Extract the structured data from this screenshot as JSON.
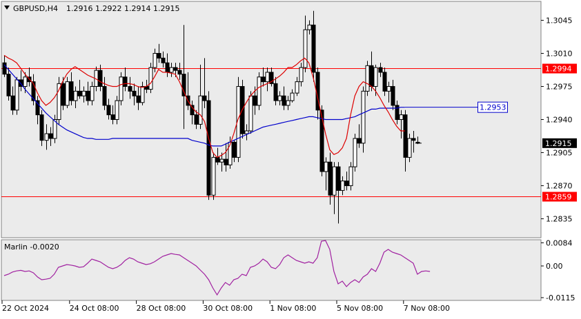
{
  "header": {
    "symbol_label": "GBPUSD,H4",
    "ohlc_label": "1.2916 1.2922 1.2914 1.2915"
  },
  "colors": {
    "panel_bg": "#ebebeb",
    "candle": "#000000",
    "candle_bull_body": "#ffffff",
    "ma_fast": "#dd0000",
    "ma_slow": "#0000cc",
    "hline": "#ff0000",
    "marlin": "#a020a0",
    "blue_label": "#0000cc"
  },
  "chart_data": [
    {
      "type": "candlestick",
      "title": "GBPUSD,H4",
      "ylim": [
        1.2815,
        1.3065
      ],
      "grid": false,
      "price_ticks": [
        "1.3045",
        "1.3010",
        "1.2975",
        "1.2940",
        "1.2905",
        "1.2870",
        "1.2835"
      ],
      "time_labels": [
        "22 Oct 2024",
        "24 Oct 08:00",
        "28 Oct 08:00",
        "30 Oct 08:00",
        "1 Nov 08:00",
        "5 Nov 08:00",
        "7 Nov 08:00"
      ],
      "time_label_index": [
        0,
        16,
        32,
        48,
        64,
        80,
        96
      ],
      "current_price": 1.2915,
      "current_price_label": "1.2915",
      "horizontal_lines": [
        {
          "value": 1.2994,
          "label": "1.2994"
        },
        {
          "value": 1.2859,
          "label": "1.2859"
        }
      ],
      "blue_level": {
        "value": 1.2953,
        "label": "1.2953"
      },
      "candles": [
        [
          1.3,
          1.3008,
          1.2985,
          1.2988
        ],
        [
          1.2988,
          1.2995,
          1.296,
          1.2965
        ],
        [
          1.2965,
          1.2975,
          1.2945,
          1.295
        ],
        [
          1.295,
          1.2985,
          1.2945,
          1.2982
        ],
        [
          1.2982,
          1.2992,
          1.297,
          1.2975
        ],
        [
          1.2975,
          1.299,
          1.2968,
          1.2985
        ],
        [
          1.2985,
          1.2995,
          1.2975,
          1.298
        ],
        [
          1.298,
          1.2988,
          1.2955,
          1.296
        ],
        [
          1.296,
          1.2965,
          1.2935,
          1.2945
        ],
        [
          1.2945,
          1.295,
          1.2912,
          1.2918
        ],
        [
          1.2918,
          1.2935,
          1.2908,
          1.2925
        ],
        [
          1.2925,
          1.2932,
          1.2912,
          1.292
        ],
        [
          1.292,
          1.2945,
          1.2915,
          1.294
        ],
        [
          1.294,
          1.2985,
          1.2935,
          1.2978
        ],
        [
          1.2978,
          1.2985,
          1.295,
          1.2955
        ],
        [
          1.2955,
          1.2985,
          1.2952,
          1.298
        ],
        [
          1.298,
          1.299,
          1.2955,
          1.296
        ],
        [
          1.296,
          1.2975,
          1.2952,
          1.297
        ],
        [
          1.297,
          1.2982,
          1.2962,
          1.2965
        ],
        [
          1.2965,
          1.2975,
          1.2958,
          1.297
        ],
        [
          1.297,
          1.298,
          1.2955,
          1.296
        ],
        [
          1.296,
          1.298,
          1.2955,
          1.2975
        ],
        [
          1.2975,
          1.2996,
          1.297,
          1.2992
        ],
        [
          1.2992,
          1.2998,
          1.297,
          1.2975
        ],
        [
          1.2975,
          1.2985,
          1.295,
          1.2955
        ],
        [
          1.2955,
          1.2962,
          1.294,
          1.2945
        ],
        [
          1.2945,
          1.2955,
          1.2935,
          1.294
        ],
        [
          1.294,
          1.2965,
          1.2935,
          1.296
        ],
        [
          1.296,
          1.299,
          1.2955,
          1.2985
        ],
        [
          1.2985,
          1.2995,
          1.297,
          1.2975
        ],
        [
          1.2975,
          1.2985,
          1.2962,
          1.297
        ],
        [
          1.297,
          1.2978,
          1.2955,
          1.2965
        ],
        [
          1.2965,
          1.2975,
          1.295,
          1.2958
        ],
        [
          1.2958,
          1.298,
          1.2955,
          1.2975
        ],
        [
          1.2975,
          1.2982,
          1.2968,
          1.2972
        ],
        [
          1.2972,
          1.3,
          1.2968,
          1.2995
        ],
        [
          1.2995,
          1.3015,
          1.299,
          1.301
        ],
        [
          1.301,
          1.302,
          1.3,
          1.3005
        ],
        [
          1.3005,
          1.3012,
          1.2995,
          1.3
        ],
        [
          1.3,
          1.301,
          1.2985,
          1.299
        ],
        [
          1.299,
          1.3,
          1.2985,
          1.2995
        ],
        [
          1.2995,
          1.3,
          1.2985,
          1.2992
        ],
        [
          1.2992,
          1.3,
          1.2982,
          1.2988
        ],
        [
          1.2988,
          1.304,
          1.293,
          1.2965
        ],
        [
          1.2965,
          1.299,
          1.295,
          1.2955
        ],
        [
          1.2955,
          1.296,
          1.2935,
          1.2945
        ],
        [
          1.2945,
          1.295,
          1.293,
          1.2935
        ],
        [
          1.2935,
          1.2998,
          1.293,
          1.2965
        ],
        [
          1.2965,
          1.3005,
          1.2952,
          1.296
        ],
        [
          1.296,
          1.297,
          1.2855,
          1.286
        ],
        [
          1.286,
          1.2905,
          1.2855,
          1.29
        ],
        [
          1.29,
          1.291,
          1.2892,
          1.2895
        ],
        [
          1.2895,
          1.2905,
          1.2885,
          1.2898
        ],
        [
          1.2898,
          1.2915,
          1.2885,
          1.2892
        ],
        [
          1.2892,
          1.2922,
          1.2888,
          1.2916
        ],
        [
          1.2916,
          1.2918,
          1.2895,
          1.29
        ],
        [
          1.29,
          1.2985,
          1.2895,
          1.2975
        ],
        [
          1.2975,
          1.2982,
          1.292,
          1.2925
        ],
        [
          1.2925,
          1.2935,
          1.2918,
          1.2928
        ],
        [
          1.2928,
          1.297,
          1.2925,
          1.2965
        ],
        [
          1.2965,
          1.2975,
          1.2945,
          1.2955
        ],
        [
          1.2955,
          1.299,
          1.295,
          1.2985
        ],
        [
          1.2985,
          1.2995,
          1.2975,
          1.298
        ],
        [
          1.298,
          1.2995,
          1.297,
          1.299
        ],
        [
          1.299,
          1.2995,
          1.2975,
          1.2978
        ],
        [
          1.2978,
          1.2985,
          1.2955,
          1.296
        ],
        [
          1.296,
          1.297,
          1.2955,
          1.2965
        ],
        [
          1.2965,
          1.2975,
          1.295,
          1.2955
        ],
        [
          1.2955,
          1.2965,
          1.295,
          1.296
        ],
        [
          1.296,
          1.2972,
          1.2958,
          1.2968
        ],
        [
          1.2968,
          1.2985,
          1.2965,
          1.298
        ],
        [
          1.298,
          1.3,
          1.2975,
          1.2995
        ],
        [
          1.2995,
          1.305,
          1.299,
          1.3035
        ],
        [
          1.3035,
          1.3045,
          1.303,
          1.304
        ],
        [
          1.304,
          1.3055,
          1.298,
          1.299
        ],
        [
          1.299,
          1.2995,
          1.294,
          1.295
        ],
        [
          1.295,
          1.2955,
          1.288,
          1.2885
        ],
        [
          1.2885,
          1.29,
          1.2865,
          1.2895
        ],
        [
          1.2895,
          1.2905,
          1.285,
          1.286
        ],
        [
          1.286,
          1.2895,
          1.284,
          1.289
        ],
        [
          1.289,
          1.2895,
          1.283,
          1.2865
        ],
        [
          1.2865,
          1.288,
          1.286,
          1.2875
        ],
        [
          1.2875,
          1.2885,
          1.2865,
          1.287
        ],
        [
          1.287,
          1.2895,
          1.2865,
          1.289
        ],
        [
          1.289,
          1.2925,
          1.2885,
          1.292
        ],
        [
          1.292,
          1.2935,
          1.291,
          1.2915
        ],
        [
          1.2915,
          1.2975,
          1.2905,
          1.297
        ],
        [
          1.297,
          1.3002,
          1.2965,
          1.2997
        ],
        [
          1.2997,
          1.3012,
          1.297,
          1.2975
        ],
        [
          1.2975,
          1.2998,
          1.2965,
          1.2995
        ],
        [
          1.2995,
          1.3,
          1.2985,
          1.299
        ],
        [
          1.299,
          1.2995,
          1.2965,
          1.297
        ],
        [
          1.297,
          1.298,
          1.2958,
          1.2975
        ],
        [
          1.2975,
          1.2982,
          1.295,
          1.2955
        ],
        [
          1.2955,
          1.296,
          1.2935,
          1.294
        ],
        [
          1.294,
          1.295,
          1.292,
          1.2945
        ],
        [
          1.2945,
          1.295,
          1.2885,
          1.29
        ],
        [
          1.29,
          1.2925,
          1.2895,
          1.292
        ],
        [
          1.292,
          1.2928,
          1.2905,
          1.2918
        ],
        [
          1.2916,
          1.2922,
          1.2914,
          1.2915
        ]
      ],
      "ma_fast": [
        1.3008,
        1.3005,
        1.3003,
        1.3,
        1.2994,
        1.2988,
        1.2983,
        1.2978,
        1.2968,
        1.296,
        1.2955,
        1.2958,
        1.2963,
        1.297,
        1.298,
        1.2988,
        1.2993,
        1.2996,
        1.2993,
        1.299,
        1.2987,
        1.2985,
        1.2983,
        1.298,
        1.2978,
        1.2976,
        1.2975,
        1.2975,
        1.2977,
        1.2978,
        1.2978,
        1.2977,
        1.2975,
        1.2974,
        1.2975,
        1.2978,
        1.2985,
        1.2993,
        1.299,
        1.299,
        1.2989,
        1.2988,
        1.298,
        1.297,
        1.296,
        1.2953,
        1.2948,
        1.2945,
        1.2938,
        1.292,
        1.2905,
        1.29,
        1.2902,
        1.2905,
        1.2912,
        1.2925,
        1.294,
        1.295,
        1.2958,
        1.2965,
        1.297,
        1.2974,
        1.2976,
        1.2978,
        1.298,
        1.2983,
        1.2986,
        1.299,
        1.2995,
        1.2995,
        1.2998,
        1.3002,
        1.3005,
        1.3,
        1.2985,
        1.2965,
        1.2945,
        1.2925,
        1.2908,
        1.2903,
        1.2905,
        1.291,
        1.292,
        1.2945,
        1.2965,
        1.2975,
        1.298,
        1.2978,
        1.2975,
        1.297,
        1.2963,
        1.2955,
        1.2948,
        1.294,
        1.2933,
        1.2928,
        1.2928
      ],
      "ma_slow": [
        1.2998,
        1.2993,
        1.2988,
        1.2983,
        1.2978,
        1.2972,
        1.2967,
        1.2962,
        1.2957,
        1.2952,
        1.2947,
        1.2943,
        1.2939,
        1.2935,
        1.2932,
        1.2929,
        1.2927,
        1.2925,
        1.2923,
        1.2921,
        1.292,
        1.292,
        1.2919,
        1.2919,
        1.2919,
        1.2919,
        1.292,
        1.292,
        1.292,
        1.292,
        1.292,
        1.292,
        1.292,
        1.292,
        1.292,
        1.292,
        1.292,
        1.292,
        1.292,
        1.292,
        1.292,
        1.292,
        1.292,
        1.292,
        1.292,
        1.2918,
        1.2917,
        1.2916,
        1.2915,
        1.2913,
        1.2912,
        1.2912,
        1.2912,
        1.2914,
        1.2916,
        1.2918,
        1.292,
        1.2922,
        1.2924,
        1.2926,
        1.2928,
        1.293,
        1.2932,
        1.2933,
        1.2934,
        1.2935,
        1.2936,
        1.2937,
        1.2938,
        1.2939,
        1.294,
        1.2941,
        1.2942,
        1.2943,
        1.2943,
        1.2942,
        1.2941,
        1.294,
        1.294,
        1.294,
        1.294,
        1.294,
        1.2941,
        1.2942,
        1.2943,
        1.2945,
        1.2947,
        1.2949,
        1.2951,
        1.2951,
        1.2952,
        1.2952,
        1.2952,
        1.2952,
        1.2952,
        1.2953,
        1.2953
      ]
    },
    {
      "type": "line",
      "title": "Marlin -0.0020",
      "ylim": [
        -0.0125,
        0.0095
      ],
      "ticks": [
        "0.0084",
        "0.00",
        "-0.0115"
      ],
      "values": [
        -0.0035,
        -0.003,
        -0.0022,
        -0.0018,
        -0.0016,
        -0.002,
        -0.0018,
        -0.0025,
        -0.004,
        -0.005,
        -0.0048,
        -0.0045,
        -0.003,
        -0.0005,
        0.0,
        0.0005,
        0.0003,
        0.0,
        -0.0005,
        -0.0003,
        0.001,
        0.0025,
        0.002,
        0.0015,
        0.0005,
        -0.0005,
        -0.001,
        -0.0005,
        0.0005,
        0.002,
        0.003,
        0.0025,
        0.0015,
        0.001,
        0.0005,
        0.0008,
        0.0015,
        0.0025,
        0.0035,
        0.004,
        0.0045,
        0.0042,
        0.004,
        0.003,
        0.002,
        0.001,
        0.0,
        -0.0015,
        -0.003,
        -0.005,
        -0.008,
        -0.0105,
        -0.008,
        -0.006,
        -0.007,
        -0.005,
        -0.0045,
        -0.003,
        -0.0035,
        -0.0005,
        0.0,
        0.001,
        0.0025,
        0.0015,
        -0.0005,
        -0.001,
        0.0005,
        0.003,
        0.004,
        0.003,
        0.002,
        0.0015,
        0.001,
        0.0015,
        0.001,
        0.003,
        0.009,
        0.0092,
        0.006,
        -0.002,
        -0.0065,
        -0.0055,
        -0.0075,
        -0.006,
        -0.005,
        -0.006,
        -0.004,
        -0.003,
        -0.001,
        -0.002,
        0.001,
        0.005,
        0.006,
        0.005,
        0.0045,
        0.004,
        0.003,
        0.002,
        0.001,
        -0.003,
        -0.002,
        -0.0018,
        -0.002
      ]
    }
  ]
}
